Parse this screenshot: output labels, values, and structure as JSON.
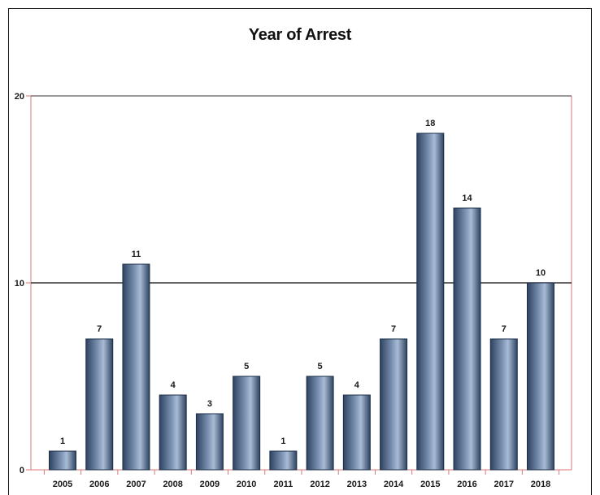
{
  "chart_data": {
    "type": "bar",
    "title": "Year of Arrest",
    "xlabel": "",
    "ylabel": "",
    "categories": [
      "2005",
      "2006",
      "2007",
      "2008",
      "2009",
      "2010",
      "2011",
      "2012",
      "2013",
      "2014",
      "2015",
      "2016",
      "2017",
      "2018"
    ],
    "values": [
      1,
      7,
      11,
      4,
      3,
      5,
      1,
      5,
      4,
      7,
      18,
      14,
      7,
      10
    ],
    "ylim": [
      0,
      20
    ],
    "yticks": [
      "0",
      "10",
      "20"
    ],
    "reference_line": 10,
    "grid": false,
    "legend": "none",
    "data_labels": true,
    "colors": {
      "bar_dark": "#2e4361",
      "bar_mid": "#7d93b3",
      "bar_light": "#a9bcd6",
      "plot_border": "#d97a7a",
      "reference_line": "#333333"
    }
  }
}
